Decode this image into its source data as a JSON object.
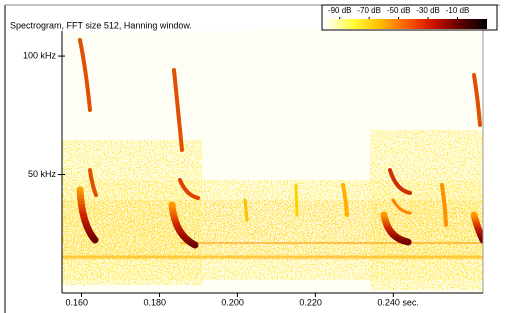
{
  "chart_data": {
    "type": "spectrogram",
    "title": "Spectrogram, FFT size 512, Hanning window.",
    "xlim": [
      0.155,
      0.263
    ],
    "xticks": [
      {
        "value": 0.16,
        "label": "0.160"
      },
      {
        "value": 0.18,
        "label": "0.180"
      },
      {
        "value": 0.2,
        "label": "0.200"
      },
      {
        "value": 0.22,
        "label": "0.220"
      },
      {
        "value": 0.24,
        "label": "0.240 sec."
      }
    ],
    "ylim": [
      0,
      111
    ],
    "yticks": [
      {
        "value": 50,
        "label": "50 kHz"
      },
      {
        "value": 100,
        "label": "100 kHz"
      }
    ],
    "colorbar": {
      "lim": [
        -100,
        10
      ],
      "ticks": [
        {
          "value": -90,
          "label": "-90 dB"
        },
        {
          "value": -70,
          "label": "-70 dB"
        },
        {
          "value": -50,
          "label": "-50 dB"
        },
        {
          "value": -30,
          "label": "-30 dB"
        },
        {
          "value": -10,
          "label": "-10 dB"
        }
      ],
      "colors": [
        "#ffffff",
        "#ffff40",
        "#ffc000",
        "#ff6000",
        "#d01000",
        "#600000",
        "#000000"
      ]
    }
  }
}
